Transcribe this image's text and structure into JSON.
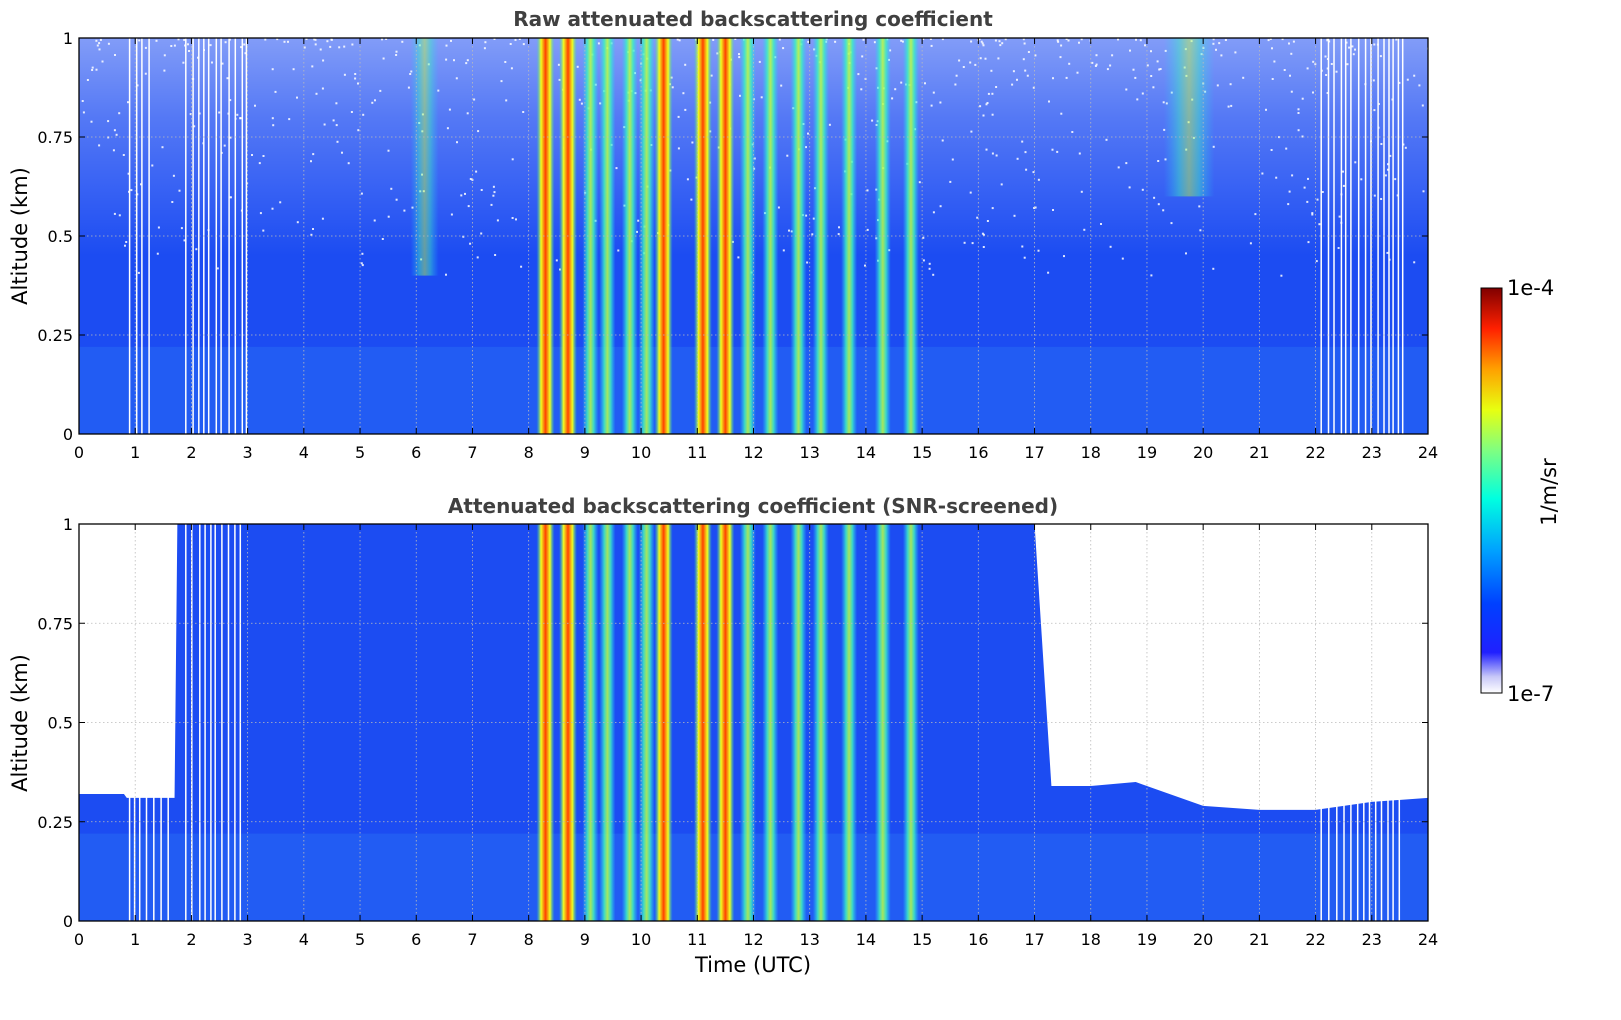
{
  "chart_data": [
    {
      "type": "heatmap",
      "title": "Raw attenuated backscattering coefficient",
      "xlabel": "",
      "ylabel": "Altitude (km)",
      "xlim": [
        0,
        24
      ],
      "ylim": [
        0,
        1
      ],
      "x_ticks": [
        "0",
        "1",
        "2",
        "3",
        "4",
        "5",
        "6",
        "7",
        "8",
        "9",
        "10",
        "11",
        "12",
        "13",
        "14",
        "15",
        "16",
        "17",
        "18",
        "19",
        "20",
        "21",
        "22",
        "23",
        "24"
      ],
      "y_ticks": [
        "0",
        "0.25",
        "0.5",
        "0.75",
        "1"
      ],
      "grid": true,
      "colormap": "jet",
      "intense_plumes_utc": [
        8.3,
        8.7,
        10.4,
        11.1,
        11.5
      ],
      "moderate_plumes_utc": [
        9.1,
        9.4,
        9.8,
        10.1,
        11.9,
        12.3,
        12.8,
        13.2,
        13.7,
        14.3,
        14.8
      ],
      "faint_features": [
        {
          "x": [
            5.9,
            6.4
          ],
          "y": [
            0.4,
            1.0
          ]
        },
        {
          "x": [
            19.3,
            20.2
          ],
          "y": [
            0.6,
            1.0
          ]
        }
      ],
      "data_gaps_utc": [
        [
          0.9,
          1.3
        ],
        [
          1.9,
          3.0
        ],
        [
          22.1,
          23.6
        ]
      ]
    },
    {
      "type": "heatmap",
      "title": "Attenuated backscattering coefficient (SNR-screened)",
      "xlabel": "Time (UTC)",
      "ylabel": "Altitude (km)",
      "xlim": [
        0,
        24
      ],
      "ylim": [
        0,
        1
      ],
      "x_ticks": [
        "0",
        "1",
        "2",
        "3",
        "4",
        "5",
        "6",
        "7",
        "8",
        "9",
        "10",
        "11",
        "12",
        "13",
        "14",
        "15",
        "16",
        "17",
        "18",
        "19",
        "20",
        "21",
        "22",
        "23",
        "24"
      ],
      "y_ticks": [
        "0",
        "0.25",
        "0.5",
        "0.75",
        "1"
      ],
      "grid": true,
      "colormap": "jet",
      "intense_plumes_utc": [
        8.3,
        8.7,
        10.4,
        11.1,
        11.5
      ],
      "moderate_plumes_utc": [
        9.1,
        9.4,
        9.8,
        10.1,
        11.9,
        12.3,
        12.8,
        13.2,
        13.7,
        14.3,
        14.8
      ],
      "valid_data_top_km": {
        "utc": [
          0,
          0.8,
          0.85,
          1.7,
          1.75,
          17.0,
          17.3,
          18.0,
          18.8,
          19.2,
          20.0,
          21.0,
          22.0,
          23.0,
          24.0
        ],
        "top": [
          0.32,
          0.32,
          0.31,
          0.31,
          1.0,
          1.0,
          0.34,
          0.34,
          0.35,
          0.33,
          0.29,
          0.28,
          0.28,
          0.3,
          0.31
        ]
      },
      "data_gaps_utc": [
        [
          0.9,
          1.6
        ],
        [
          1.9,
          3.0
        ],
        [
          22.1,
          23.6
        ]
      ]
    }
  ],
  "colorbar": {
    "label": "1/m/sr",
    "max_label": "1e-4",
    "min_label": "1e-7",
    "scale": "log",
    "range": [
      1e-07,
      0.0001
    ]
  },
  "colors": {
    "title": "#404040",
    "grid": "#bbbbbb",
    "background_fill": "#1c4cf2"
  }
}
